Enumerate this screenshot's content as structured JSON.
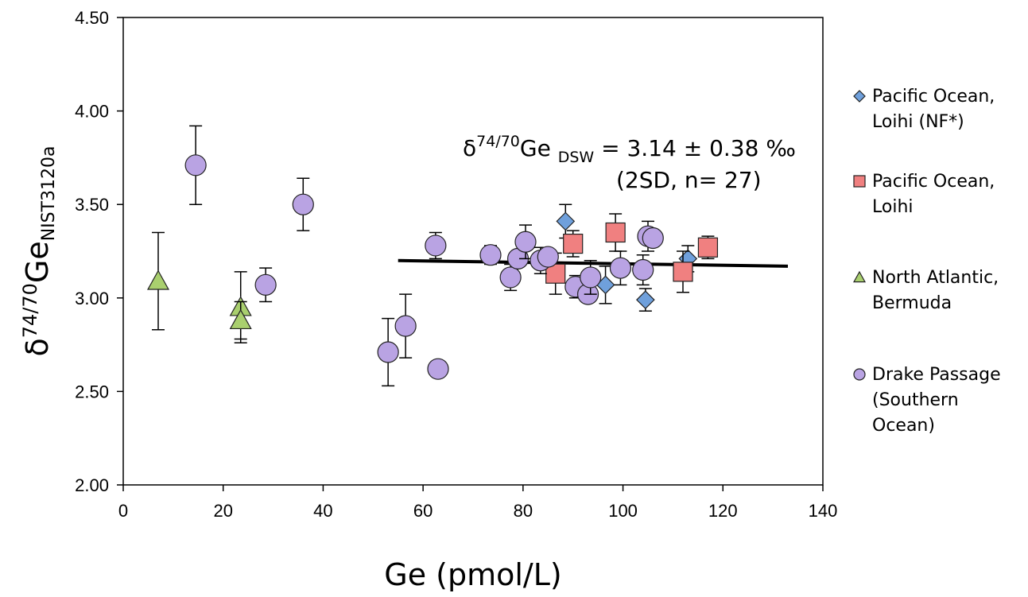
{
  "chart_data": {
    "type": "scatter",
    "xlabel": "Ge (pmol/L)",
    "ylabel": {
      "delta": "δ",
      "sup": "74/70",
      "main": "Ge",
      "sub": "NIST3120a"
    },
    "xlim": [
      0,
      140
    ],
    "ylim": [
      2.0,
      4.5
    ],
    "xticks": [
      "0",
      "20",
      "40",
      "60",
      "80",
      "100",
      "120",
      "140"
    ],
    "yticks": [
      "2.00",
      "2.50",
      "3.00",
      "3.50",
      "4.00",
      "4.50"
    ],
    "annotation": {
      "line1_delta": "δ",
      "line1_sup": "74/70",
      "line1_main": "Ge ",
      "line1_sub": "DSW",
      "line1_rest": " = 3.14 ±  0.38 ‰",
      "line2": "(2SD, n= 27)"
    },
    "fit_line": {
      "x": [
        55,
        133
      ],
      "y": [
        3.2,
        3.17
      ]
    },
    "series": [
      {
        "name": "Pacific Ocean, Loihi (NF*)",
        "legend_lines": [
          "Pacific Ocean,",
          "Loihi (NF*)"
        ],
        "marker": "diamond",
        "color": "#6fa0dc",
        "points": [
          {
            "x": 88.5,
            "y": 3.41,
            "err": 0.09
          },
          {
            "x": 96.5,
            "y": 3.07,
            "err": 0.1
          },
          {
            "x": 104.5,
            "y": 2.99,
            "err": 0.06
          },
          {
            "x": 113.0,
            "y": 3.21,
            "err": 0.07
          }
        ]
      },
      {
        "name": "Pacific Ocean, Loihi",
        "legend_lines": [
          "Pacific Ocean,",
          "Loihi"
        ],
        "marker": "square",
        "color": "#f08080",
        "points": [
          {
            "x": 86.5,
            "y": 3.13,
            "err": 0.11
          },
          {
            "x": 90.0,
            "y": 3.29,
            "err": 0.07
          },
          {
            "x": 98.5,
            "y": 3.35,
            "err": 0.1
          },
          {
            "x": 112.0,
            "y": 3.14,
            "err": 0.11
          },
          {
            "x": 117.0,
            "y": 3.27,
            "err": 0.06
          }
        ]
      },
      {
        "name": "North Atlantic, Bermuda",
        "legend_lines": [
          "North Atlantic,",
          "Bermuda"
        ],
        "marker": "triangle",
        "color": "#a9cf6e",
        "points": [
          {
            "x": 7.0,
            "y": 3.09,
            "err": 0.26
          },
          {
            "x": 23.5,
            "y": 2.95,
            "err": 0.19
          },
          {
            "x": 23.5,
            "y": 2.88,
            "err": 0.1
          }
        ]
      },
      {
        "name": "Drake Passage (Southern Ocean)",
        "legend_lines": [
          "Drake Passage",
          "(Southern",
          "Ocean)"
        ],
        "marker": "circle",
        "color": "#b9a3e3",
        "points": [
          {
            "x": 14.5,
            "y": 3.71,
            "err": 0.21
          },
          {
            "x": 28.5,
            "y": 3.07,
            "err": 0.09
          },
          {
            "x": 36.0,
            "y": 3.5,
            "err": 0.14
          },
          {
            "x": 53.0,
            "y": 2.71,
            "err": 0.18
          },
          {
            "x": 56.5,
            "y": 2.85,
            "err": 0.17
          },
          {
            "x": 62.5,
            "y": 3.28,
            "err": 0.07
          },
          {
            "x": 63.0,
            "y": 2.62,
            "err": 0.0
          },
          {
            "x": 73.5,
            "y": 3.23,
            "err": 0.05
          },
          {
            "x": 77.5,
            "y": 3.11,
            "err": 0.07
          },
          {
            "x": 79.0,
            "y": 3.21,
            "err": 0.0
          },
          {
            "x": 80.5,
            "y": 3.3,
            "err": 0.09
          },
          {
            "x": 83.5,
            "y": 3.2,
            "err": 0.07
          },
          {
            "x": 85.0,
            "y": 3.22,
            "err": 0.0
          },
          {
            "x": 90.5,
            "y": 3.06,
            "err": 0.06
          },
          {
            "x": 93.0,
            "y": 3.02,
            "err": 0.0
          },
          {
            "x": 93.5,
            "y": 3.11,
            "err": 0.09
          },
          {
            "x": 99.5,
            "y": 3.16,
            "err": 0.09
          },
          {
            "x": 104.0,
            "y": 3.15,
            "err": 0.08
          },
          {
            "x": 105.0,
            "y": 3.33,
            "err": 0.08
          },
          {
            "x": 106.0,
            "y": 3.32,
            "err": 0.0
          }
        ]
      }
    ]
  }
}
